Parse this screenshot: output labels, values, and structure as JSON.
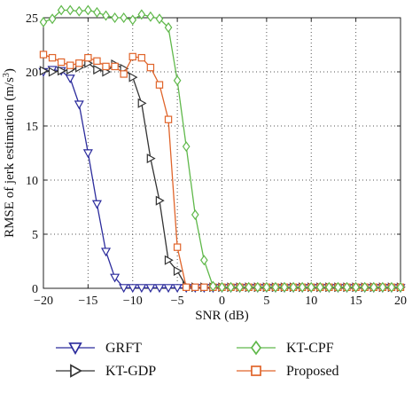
{
  "chart_data": {
    "type": "line",
    "xlabel": "SNR (dB)",
    "ylabel": "RMSE of jerk estimation (m/s³)",
    "ylabel_parts": {
      "main": "RMSE of jerk estimation (m/s",
      "sup": "3",
      "close": ")"
    },
    "xlim": [
      -20,
      20
    ],
    "ylim": [
      0,
      25
    ],
    "xticks": [
      -20,
      -15,
      -10,
      -5,
      0,
      5,
      10,
      15,
      20
    ],
    "xtick_labels": [
      "−20",
      "−15",
      "−10",
      "−5",
      "0",
      "5",
      "10",
      "15",
      "20"
    ],
    "yticks": [
      0,
      5,
      10,
      15,
      20,
      25
    ],
    "ytick_labels": [
      "0",
      "5",
      "10",
      "15",
      "20",
      "25"
    ],
    "grid": true,
    "legend_position": "bottom, outside plot, two columns",
    "x": [
      -20,
      -19,
      -18,
      -17,
      -16,
      -15,
      -14,
      -13,
      -12,
      -11,
      -10,
      -9,
      -8,
      -7,
      -6,
      -5,
      -4,
      -3,
      -2,
      -1,
      0,
      1,
      2,
      3,
      4,
      5,
      6,
      7,
      8,
      9,
      10,
      11,
      12,
      13,
      14,
      15,
      16,
      17,
      18,
      19,
      20
    ],
    "series": [
      {
        "name": "GRFT",
        "color": "#2b2b9c",
        "marker": "triangle-down",
        "values": [
          20.0,
          20.2,
          20.1,
          19.4,
          17.0,
          12.5,
          7.8,
          3.4,
          1.0,
          0.05,
          0.05,
          0.05,
          0.05,
          0.05,
          0.05,
          0.05,
          0.05,
          0.05,
          0.05,
          0.05,
          0.05,
          0.05,
          0.05,
          0.05,
          0.05,
          0.05,
          0.05,
          0.05,
          0.05,
          0.05,
          0.05,
          0.05,
          0.05,
          0.05,
          0.05,
          0.05,
          0.05,
          0.05,
          0.05,
          0.05,
          0.05
        ]
      },
      {
        "name": "KT-GDP",
        "color": "#333333",
        "marker": "triangle-right",
        "values": [
          20.1,
          20.0,
          20.1,
          20.2,
          20.4,
          20.8,
          20.2,
          20.0,
          20.7,
          20.3,
          19.5,
          17.1,
          12.0,
          8.1,
          2.6,
          1.6,
          0.2,
          0.1,
          0.1,
          0.1,
          0.1,
          0.1,
          0.1,
          0.1,
          0.1,
          0.1,
          0.1,
          0.1,
          0.1,
          0.1,
          0.1,
          0.1,
          0.1,
          0.1,
          0.1,
          0.1,
          0.1,
          0.1,
          0.1,
          0.1,
          0.1
        ]
      },
      {
        "name": "KT-CPF",
        "color": "#5fb84a",
        "marker": "diamond",
        "values": [
          24.6,
          24.9,
          25.7,
          25.7,
          25.6,
          25.7,
          25.5,
          25.2,
          25.0,
          25.0,
          24.8,
          25.3,
          25.1,
          24.9,
          24.1,
          19.2,
          13.1,
          6.8,
          2.6,
          0.2,
          0.1,
          0.1,
          0.1,
          0.1,
          0.1,
          0.1,
          0.1,
          0.1,
          0.1,
          0.1,
          0.1,
          0.1,
          0.1,
          0.1,
          0.1,
          0.1,
          0.1,
          0.1,
          0.1,
          0.1,
          0.1
        ]
      },
      {
        "name": "Proposed",
        "color": "#e0642a",
        "marker": "square",
        "values": [
          21.6,
          21.3,
          20.9,
          20.6,
          20.8,
          21.3,
          21.0,
          20.5,
          20.5,
          19.8,
          21.4,
          21.3,
          20.4,
          18.8,
          15.6,
          3.8,
          0.1,
          0.1,
          0.1,
          0.1,
          0.1,
          0.1,
          0.1,
          0.1,
          0.1,
          0.1,
          0.1,
          0.1,
          0.1,
          0.1,
          0.1,
          0.1,
          0.1,
          0.1,
          0.1,
          0.1,
          0.1,
          0.1,
          0.1,
          0.1,
          0.1
        ]
      }
    ]
  }
}
